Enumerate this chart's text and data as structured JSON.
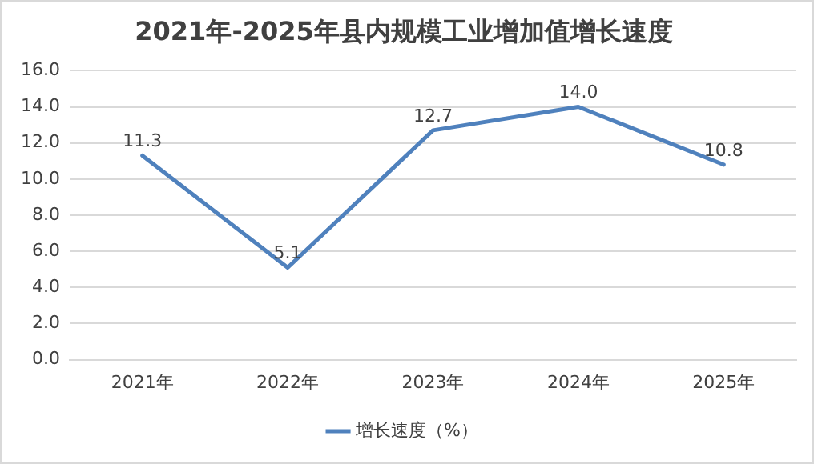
{
  "chart_data": {
    "type": "line",
    "title": "2021年-2025年县内规模工业增加值增长速度",
    "categories": [
      "2021年",
      "2022年",
      "2023年",
      "2024年",
      "2025年"
    ],
    "series": [
      {
        "name": "增长速度（%）",
        "color": "#4f81bd",
        "values": [
          11.3,
          5.1,
          12.7,
          14.0,
          10.8
        ],
        "value_labels": [
          "11.3",
          "5.1",
          "12.7",
          "14.0",
          "10.8"
        ]
      }
    ],
    "ylim": [
      0,
      16
    ],
    "yticks": [
      {
        "value": 0,
        "label": "0.0"
      },
      {
        "value": 2,
        "label": "2.0"
      },
      {
        "value": 4,
        "label": "4.0"
      },
      {
        "value": 6,
        "label": "6.0"
      },
      {
        "value": 8,
        "label": "8.0"
      },
      {
        "value": 10,
        "label": "10.0"
      },
      {
        "value": 12,
        "label": "12.0"
      },
      {
        "value": 14,
        "label": "14.0"
      },
      {
        "value": 16,
        "label": "16.0"
      }
    ],
    "grid": "y",
    "legend": "bottom",
    "marker": "none",
    "line_style": "solid"
  }
}
